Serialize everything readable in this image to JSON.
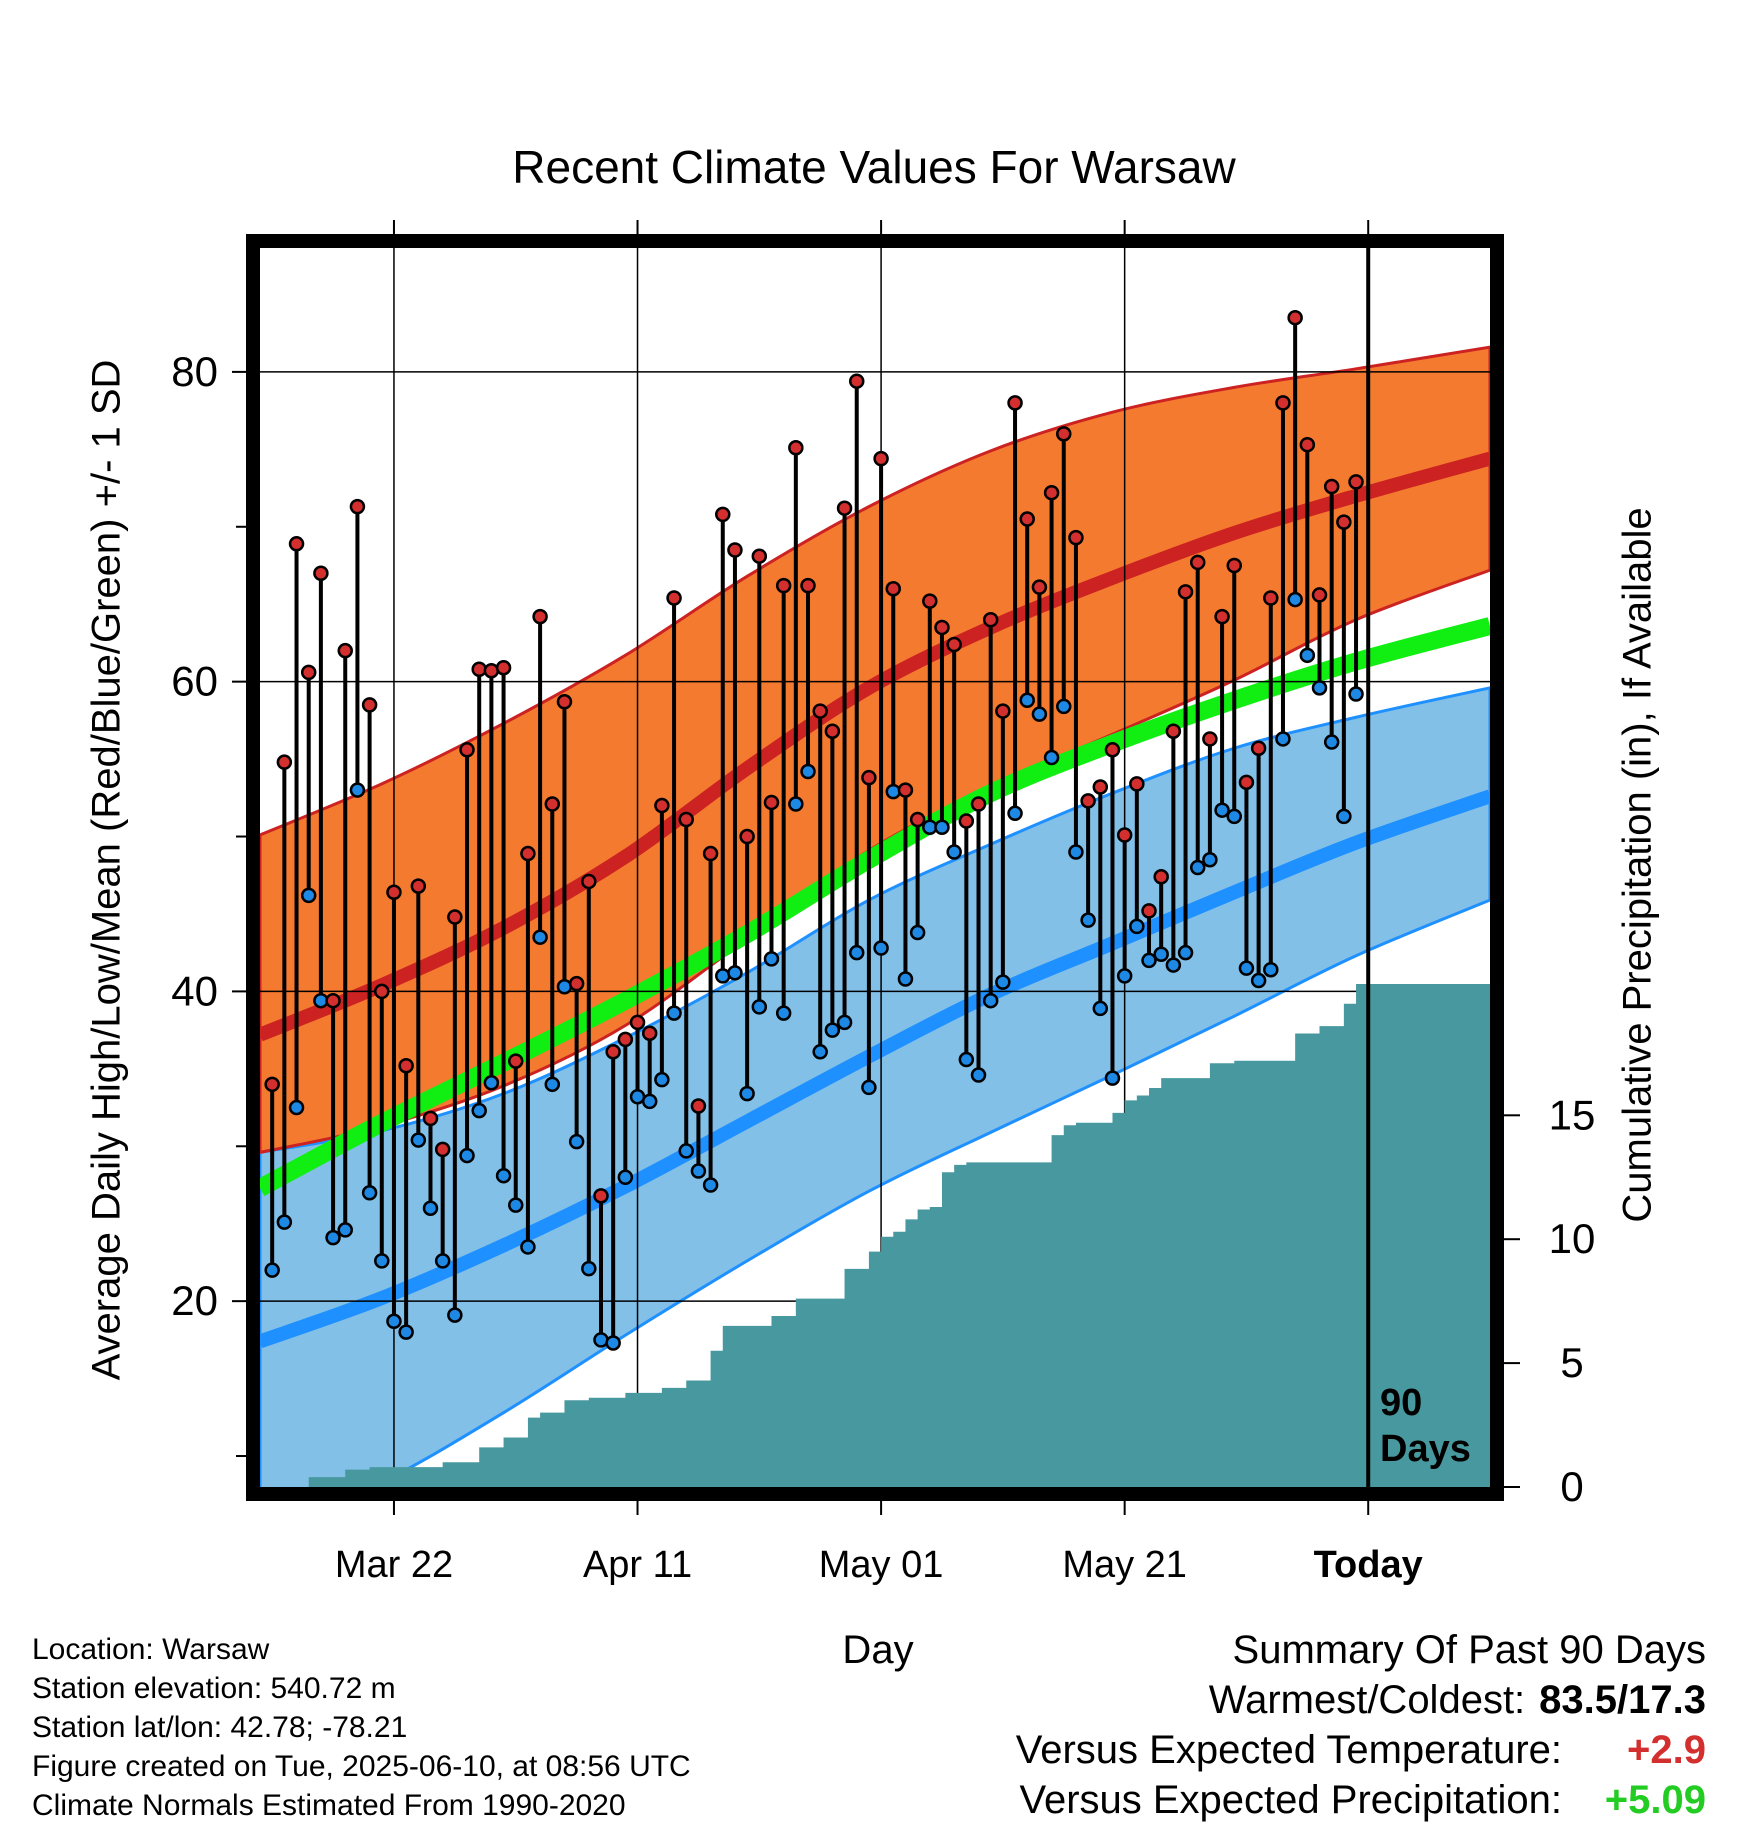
{
  "title": "Recent Climate Values For Warsaw",
  "y_label_left": "Average Daily High/Low/Mean (Red/Blue/Green) +/- 1 SD",
  "y_label_right": "Cumulative Precipitation (in), If Available",
  "x_label": "Day",
  "days_marker": [
    "90",
    "Days"
  ],
  "footer": {
    "location": "Location: Warsaw",
    "elevation": "Station elevation: 540.72 m",
    "latlon": "Station lat/lon: 42.78; -78.21",
    "created": "Figure created on Tue, 2025-06-10, at 08:56 UTC",
    "normals": "Climate Normals Estimated From 1990-2020"
  },
  "summary": {
    "heading": "Summary Of Past 90 Days",
    "warm_cold_label": "Warmest/Coldest:",
    "warm_cold_value": "83.5/17.3",
    "temp_label": "Versus Expected Temperature:",
    "temp_value": "+2.9",
    "precip_label": "Versus Expected Precipitation:",
    "precip_value": "+5.09"
  },
  "colors": {
    "high_band": "#f47a30",
    "high_line": "#cc2222",
    "low_band": "#82c0e8",
    "low_line": "#1e90ff",
    "mean_line": "#11ee11",
    "precip": "#48999f",
    "high_dot": "#d32f2f",
    "low_dot": "#1e88e5"
  },
  "chart_data": {
    "type": "line",
    "x_axis": {
      "ticks": [
        {
          "day": 11,
          "label": "Mar 22"
        },
        {
          "day": 31,
          "label": "Apr 11"
        },
        {
          "day": 51,
          "label": "May 01"
        },
        {
          "day": 71,
          "label": "May 21"
        },
        {
          "day": 91,
          "label": "Today"
        }
      ],
      "xlim": [
        0,
        101
      ]
    },
    "y_left": {
      "ylim": [
        8,
        88
      ],
      "ticks": [
        20,
        40,
        60,
        80
      ],
      "minor_ticks": [
        10,
        30,
        50,
        70
      ]
    },
    "y_right": {
      "ylim": [
        0,
        50
      ],
      "ticks": [
        0,
        5,
        10,
        15
      ]
    },
    "today_day": 91,
    "normals": {
      "day": [
        0,
        10,
        20,
        30,
        40,
        50,
        60,
        70,
        80,
        90,
        101
      ],
      "high_mean": [
        37.2,
        40.4,
        44.1,
        48.7,
        54.4,
        59.6,
        63.5,
        66.7,
        69.6,
        72.0,
        74.4
      ],
      "high_sd_upper": [
        50.1,
        53.4,
        57.3,
        61.7,
        66.8,
        71.3,
        74.9,
        77.4,
        79.0,
        80.2,
        81.6
      ],
      "high_sd_lower": [
        29.6,
        31.3,
        33.9,
        37.8,
        43.4,
        49.1,
        53.2,
        56.6,
        60.1,
        64.0,
        67.2
      ],
      "mean": [
        27.3,
        31.5,
        35.4,
        39.4,
        43.7,
        48.5,
        52.8,
        56.0,
        58.8,
        61.3,
        63.6
      ],
      "low_mean": [
        17.4,
        20.2,
        23.6,
        27.4,
        31.6,
        35.8,
        39.8,
        43.1,
        46.4,
        49.6,
        52.6
      ],
      "low_sd_upper": [
        29.6,
        31.0,
        33.4,
        37.0,
        41.2,
        45.9,
        49.5,
        52.8,
        55.7,
        57.7,
        59.6
      ],
      "low_sd_lower": [
        5.0,
        8.3,
        12.8,
        17.8,
        22.6,
        27.1,
        30.9,
        34.6,
        38.4,
        42.3,
        45.9
      ]
    },
    "daily_high": [
      34.0,
      54.8,
      68.9,
      60.6,
      67.0,
      39.4,
      62.0,
      71.3,
      58.5,
      40.0,
      46.4,
      35.2,
      46.8,
      31.8,
      29.8,
      44.8,
      55.6,
      60.8,
      60.7,
      60.9,
      35.5,
      48.9,
      64.2,
      52.1,
      58.7,
      40.5,
      47.1,
      26.8,
      36.1,
      36.9,
      38.0,
      37.3,
      52.0,
      65.4,
      51.1,
      32.6,
      48.9,
      70.8,
      68.5,
      50.0,
      68.1,
      52.2,
      66.2,
      75.1,
      66.2,
      58.1,
      56.8,
      71.2,
      79.4,
      53.8,
      74.4,
      66.0,
      53.0,
      51.1,
      65.2,
      63.5,
      62.4,
      51.0,
      52.1,
      64.0,
      58.1,
      78.0,
      70.5,
      66.1,
      72.2,
      76.0,
      69.3,
      52.3,
      53.2,
      55.6,
      50.1,
      53.4,
      45.2,
      47.4,
      56.8,
      65.8,
      67.7,
      56.3,
      64.2,
      67.5,
      53.5,
      55.7,
      65.4,
      78.0,
      83.5,
      75.3,
      65.6,
      72.6,
      70.3,
      72.9
    ],
    "daily_low": [
      22.0,
      25.1,
      32.5,
      46.2,
      39.4,
      24.1,
      24.6,
      53.0,
      27.0,
      22.6,
      18.7,
      18.0,
      30.4,
      26.0,
      22.6,
      19.1,
      29.4,
      32.3,
      34.1,
      28.1,
      26.2,
      23.5,
      43.5,
      34.0,
      40.3,
      30.3,
      22.1,
      17.5,
      17.3,
      28.0,
      33.2,
      32.9,
      34.3,
      38.6,
      29.7,
      28.4,
      27.5,
      41.0,
      41.2,
      33.4,
      39.0,
      42.1,
      38.6,
      52.1,
      54.2,
      36.1,
      37.5,
      38.0,
      42.5,
      33.8,
      42.8,
      52.9,
      40.8,
      43.8,
      50.6,
      50.6,
      49.0,
      35.6,
      34.6,
      39.4,
      40.6,
      51.5,
      58.8,
      57.9,
      55.1,
      58.4,
      49.0,
      44.6,
      38.9,
      34.4,
      41.0,
      44.2,
      42.0,
      42.4,
      41.7,
      42.5,
      48.0,
      48.5,
      51.7,
      51.3,
      41.5,
      40.7,
      41.4,
      56.3,
      65.3,
      61.7,
      59.6,
      56.1,
      51.3,
      59.2
    ],
    "cumulative_precip": {
      "day": [
        0,
        4,
        7,
        9,
        10,
        15,
        18,
        20,
        21,
        22,
        23,
        24,
        25,
        27,
        30,
        33,
        35,
        36,
        37,
        38,
        40,
        42,
        44,
        45,
        46,
        48,
        49,
        50,
        51,
        52,
        53,
        54,
        55,
        56,
        57,
        58,
        60,
        62,
        65,
        66,
        67,
        68,
        69,
        70,
        71,
        72,
        73,
        74,
        75,
        76,
        78,
        80,
        83,
        84,
        85,
        86,
        87,
        89,
        90,
        91,
        101
      ],
      "value": [
        0.0,
        0.4,
        0.7,
        0.8,
        0.8,
        1.0,
        1.6,
        2.0,
        2.0,
        2.8,
        3.0,
        3.0,
        3.5,
        3.6,
        3.8,
        4.0,
        4.3,
        4.3,
        5.5,
        6.5,
        6.5,
        6.9,
        7.6,
        7.6,
        7.6,
        8.8,
        8.8,
        9.5,
        10.1,
        10.3,
        10.8,
        11.2,
        11.3,
        12.7,
        13.0,
        13.1,
        13.1,
        13.1,
        14.2,
        14.6,
        14.7,
        14.7,
        14.7,
        15.1,
        15.6,
        15.8,
        16.1,
        16.5,
        16.5,
        16.5,
        17.1,
        17.2,
        17.2,
        17.2,
        18.3,
        18.3,
        18.6,
        19.5,
        20.3,
        20.3,
        20.3
      ]
    }
  }
}
